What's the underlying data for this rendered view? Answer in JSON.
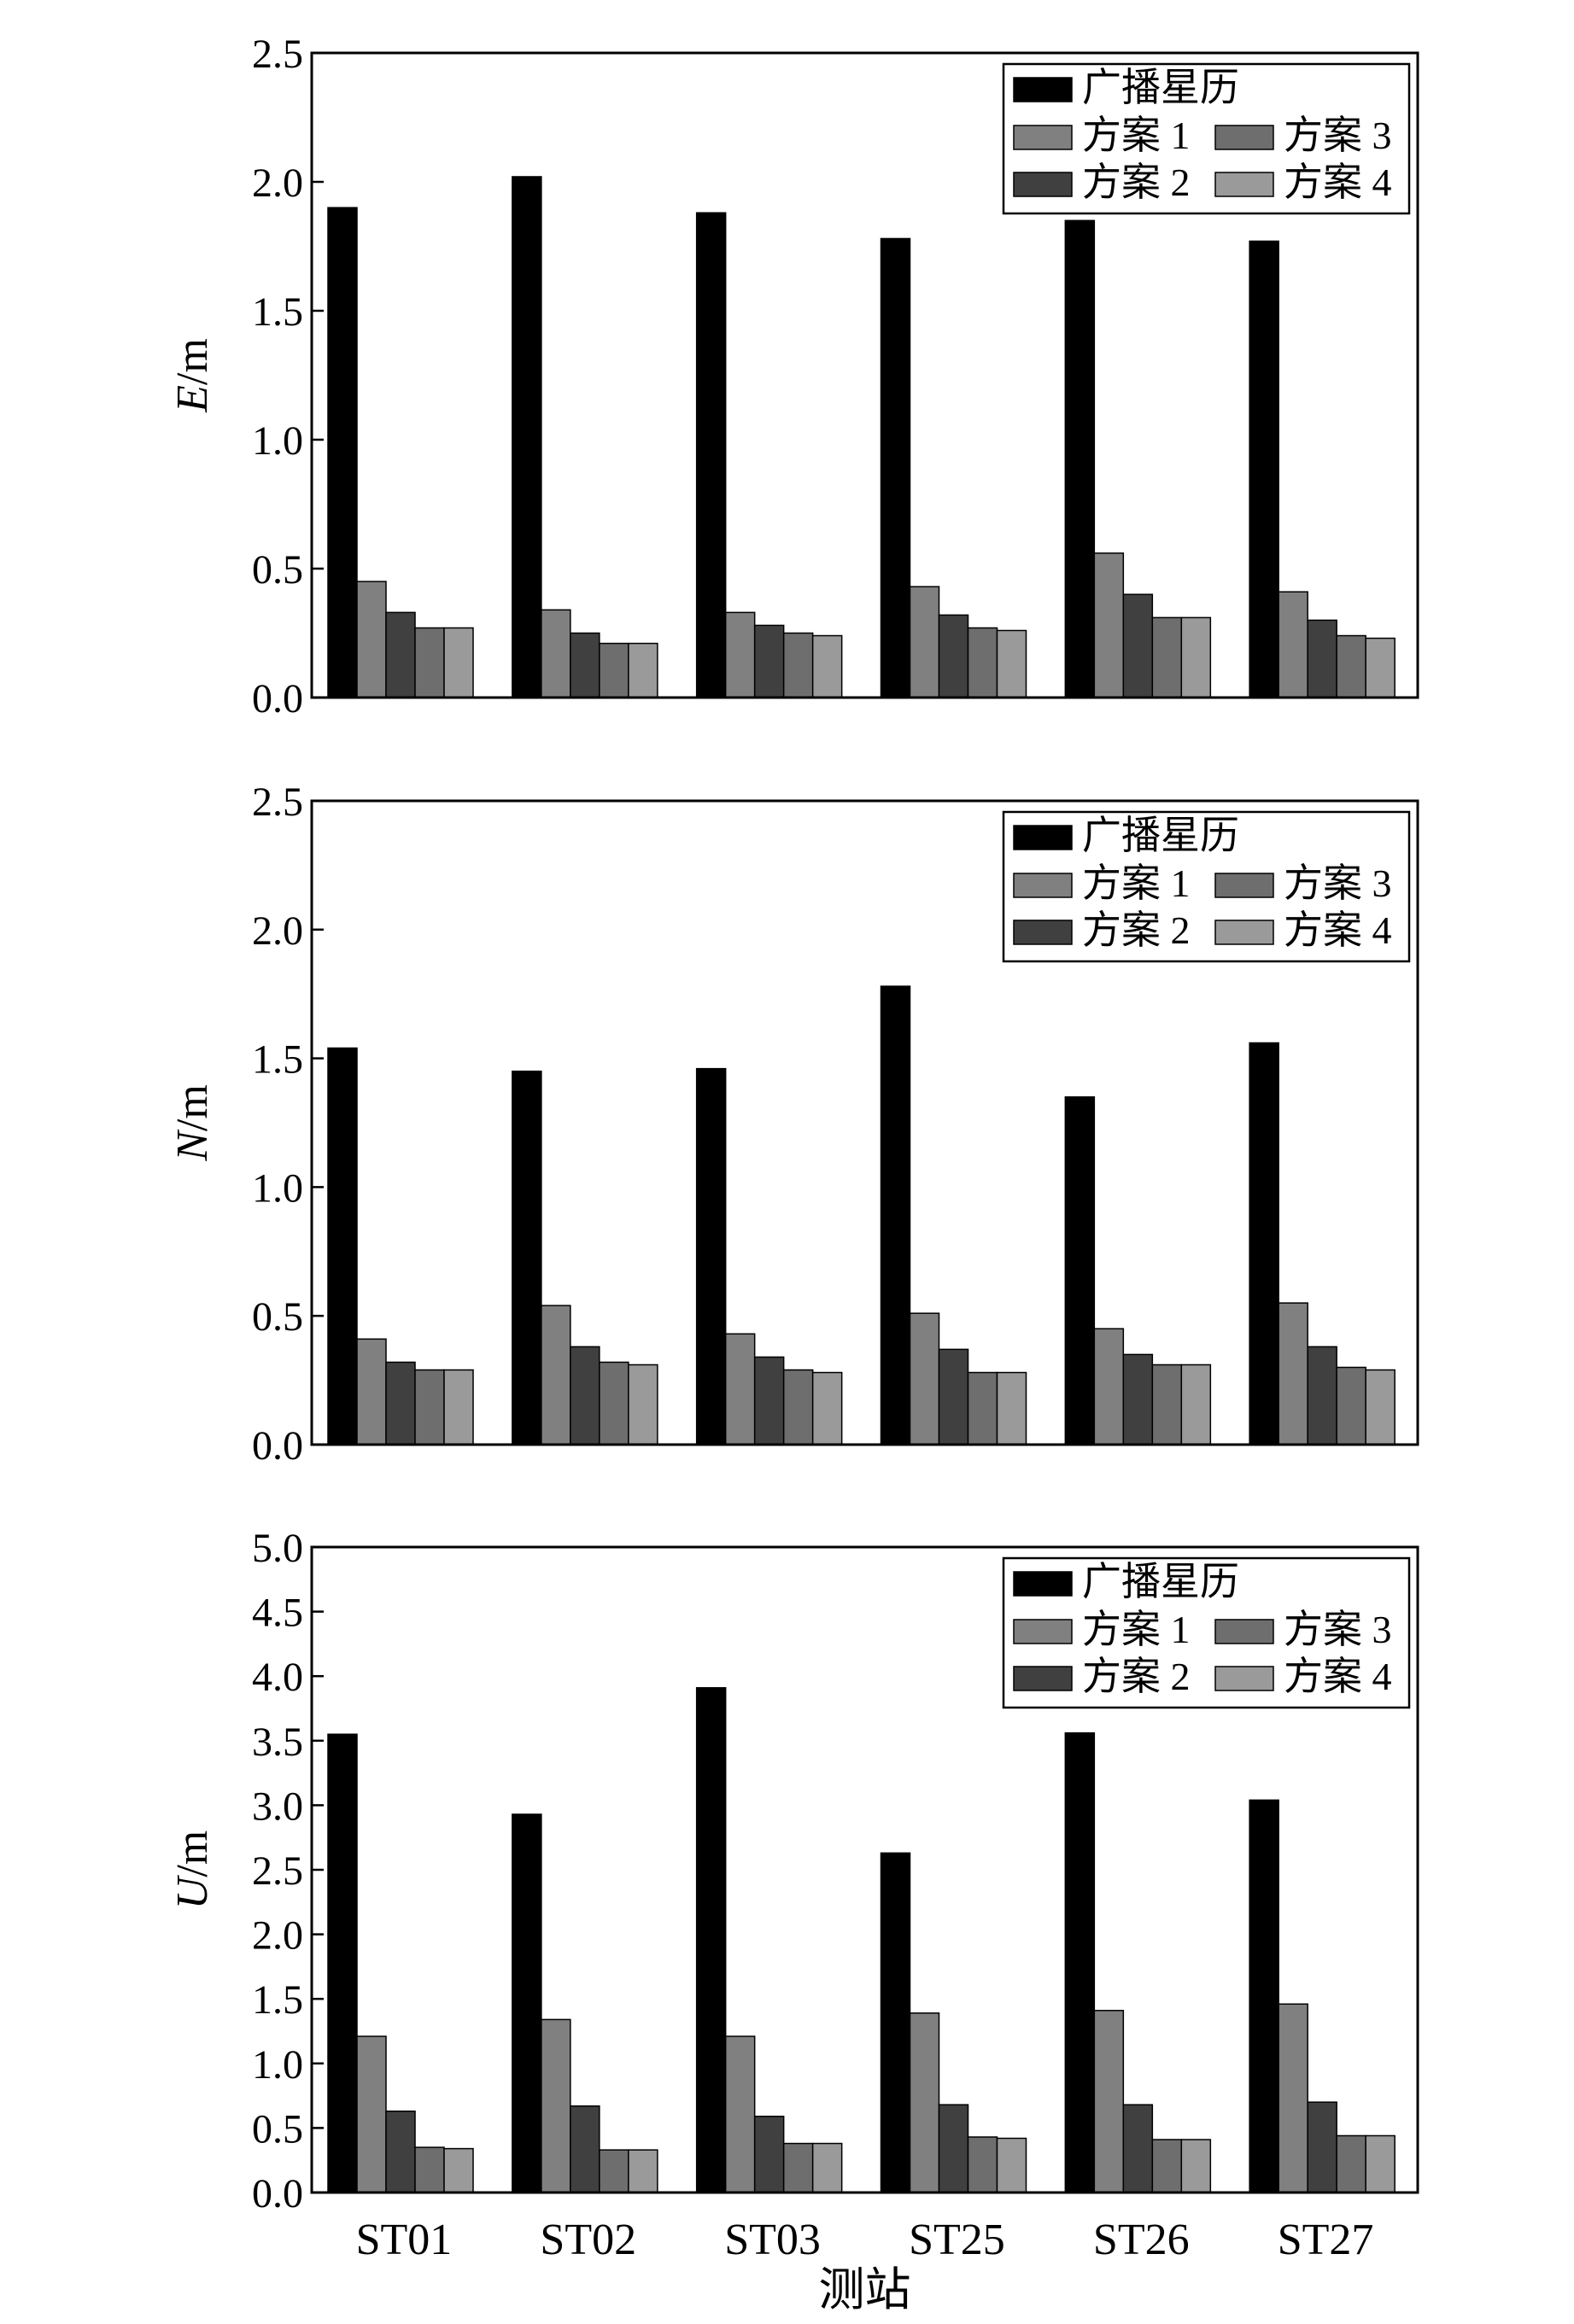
{
  "figure": {
    "xlabel": "测站",
    "legend_items": [
      {
        "name": "广播星历",
        "color": "#000000"
      },
      {
        "name": "方案 1",
        "color": "#808080"
      },
      {
        "name": "方案 2",
        "color": "#404040"
      },
      {
        "name": "方案 3",
        "color": "#6e6e6e"
      },
      {
        "name": "方案 4",
        "color": "#9a9a9a"
      }
    ]
  },
  "chart_data": [
    {
      "type": "bar",
      "ylabel": "E/m",
      "ylabel_italic": "E",
      "ylabel_unit": "/m",
      "ylim": [
        0,
        2.5
      ],
      "yticks": [
        "0.0",
        "0.5",
        "1.0",
        "1.5",
        "2.0",
        "2.5"
      ],
      "categories": [
        "ST01",
        "ST02",
        "ST03",
        "ST25",
        "ST26",
        "ST27"
      ],
      "legend_position": "top-right",
      "series": [
        {
          "name": "广播星历",
          "color": "#000000",
          "values": [
            1.9,
            2.02,
            1.88,
            1.78,
            1.85,
            1.77
          ]
        },
        {
          "name": "方案 1",
          "color": "#808080",
          "values": [
            0.45,
            0.34,
            0.33,
            0.43,
            0.56,
            0.41
          ]
        },
        {
          "name": "方案 2",
          "color": "#404040",
          "values": [
            0.33,
            0.25,
            0.28,
            0.32,
            0.4,
            0.3
          ]
        },
        {
          "name": "方案 3",
          "color": "#6e6e6e",
          "values": [
            0.27,
            0.21,
            0.25,
            0.27,
            0.31,
            0.24
          ]
        },
        {
          "name": "方案 4",
          "color": "#9a9a9a",
          "values": [
            0.27,
            0.21,
            0.24,
            0.26,
            0.31,
            0.23
          ]
        }
      ]
    },
    {
      "type": "bar",
      "ylabel": "N/m",
      "ylabel_italic": "N",
      "ylabel_unit": "/m",
      "ylim": [
        0,
        2.5
      ],
      "yticks": [
        "0.0",
        "0.5",
        "1.0",
        "1.5",
        "2.0",
        "2.5"
      ],
      "categories": [
        "ST01",
        "ST02",
        "ST03",
        "ST25",
        "ST26",
        "ST27"
      ],
      "legend_position": "top-right",
      "series": [
        {
          "name": "广播星历",
          "color": "#000000",
          "values": [
            1.54,
            1.45,
            1.46,
            1.78,
            1.35,
            1.56
          ]
        },
        {
          "name": "方案 1",
          "color": "#808080",
          "values": [
            0.41,
            0.54,
            0.43,
            0.51,
            0.45,
            0.55
          ]
        },
        {
          "name": "方案 2",
          "color": "#404040",
          "values": [
            0.32,
            0.38,
            0.34,
            0.37,
            0.35,
            0.38
          ]
        },
        {
          "name": "方案 3",
          "color": "#6e6e6e",
          "values": [
            0.29,
            0.32,
            0.29,
            0.28,
            0.31,
            0.3
          ]
        },
        {
          "name": "方案 4",
          "color": "#9a9a9a",
          "values": [
            0.29,
            0.31,
            0.28,
            0.28,
            0.31,
            0.29
          ]
        }
      ]
    },
    {
      "type": "bar",
      "ylabel": "U/m",
      "ylabel_italic": "U",
      "ylabel_unit": "/m",
      "ylim": [
        0,
        5.0
      ],
      "yticks": [
        "0.0",
        "0.5",
        "1.0",
        "1.5",
        "2.0",
        "2.5",
        "3.0",
        "3.5",
        "4.0",
        "4.5",
        "5.0"
      ],
      "categories": [
        "ST01",
        "ST02",
        "ST03",
        "ST25",
        "ST26",
        "ST27"
      ],
      "legend_position": "top-right",
      "series": [
        {
          "name": "广播星历",
          "color": "#000000",
          "values": [
            3.55,
            2.93,
            3.91,
            2.63,
            3.56,
            3.04
          ]
        },
        {
          "name": "方案 1",
          "color": "#808080",
          "values": [
            1.21,
            1.34,
            1.21,
            1.39,
            1.41,
            1.46
          ]
        },
        {
          "name": "方案 2",
          "color": "#404040",
          "values": [
            0.63,
            0.67,
            0.59,
            0.68,
            0.68,
            0.7
          ]
        },
        {
          "name": "方案 3",
          "color": "#6e6e6e",
          "values": [
            0.35,
            0.33,
            0.38,
            0.43,
            0.41,
            0.44
          ]
        },
        {
          "name": "方案 4",
          "color": "#9a9a9a",
          "values": [
            0.34,
            0.33,
            0.38,
            0.42,
            0.41,
            0.44
          ]
        }
      ]
    }
  ]
}
